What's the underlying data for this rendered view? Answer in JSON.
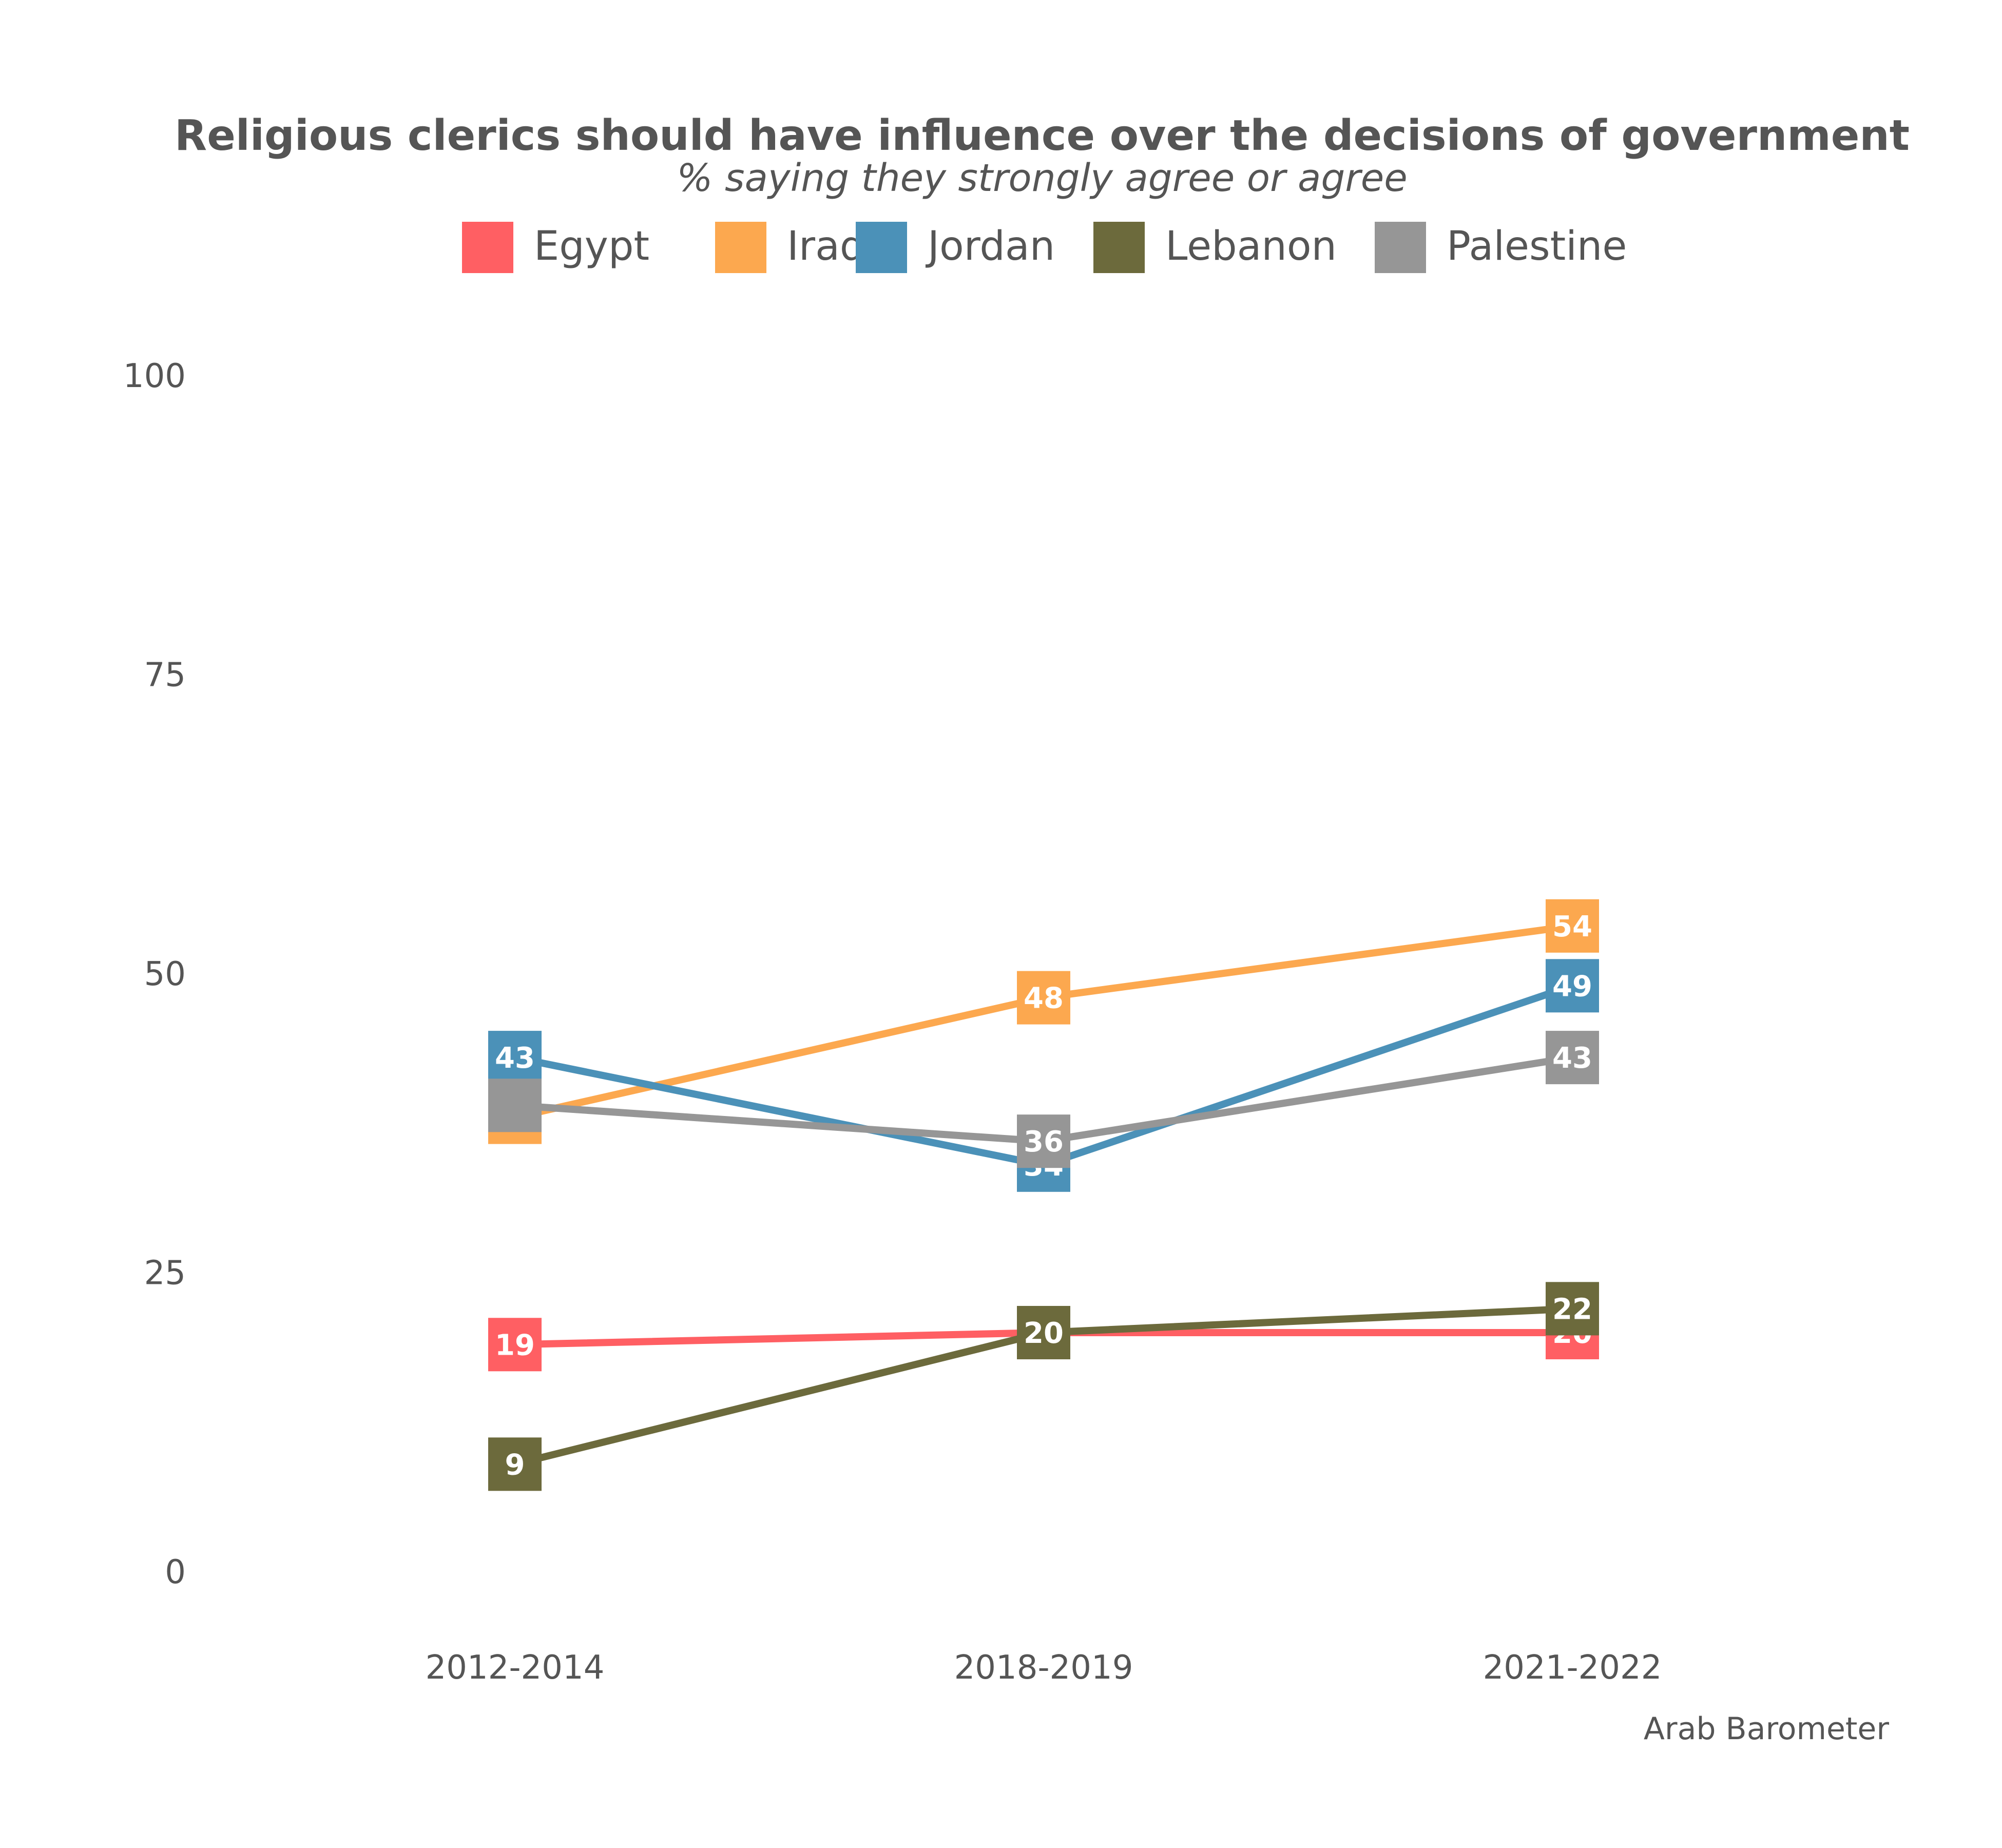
{
  "chart_data": {
    "type": "line",
    "title": "Religious clerics should have influence over the decisions of government",
    "subtitle": "% saying they strongly agree or agree",
    "caption": "Arab Barometer",
    "categories": [
      "2012-2014",
      "2018-2019",
      "2021-2022"
    ],
    "ylim": [
      0,
      100
    ],
    "yticks": [
      0,
      25,
      50,
      75,
      100
    ],
    "legend_position": "top",
    "grid": false,
    "series": [
      {
        "name": "Egypt",
        "color": "#FF5F63",
        "values": [
          19,
          20,
          20
        ]
      },
      {
        "name": "Iraq",
        "color": "#FCA84F",
        "values": [
          38,
          48,
          54
        ]
      },
      {
        "name": "Jordan",
        "color": "#4B91B8",
        "values": [
          43,
          34,
          49
        ]
      },
      {
        "name": "Lebanon",
        "color": "#6C6A3C",
        "values": [
          9,
          20,
          22
        ]
      },
      {
        "name": "Palestine",
        "color": "#969696",
        "values": [
          39,
          36,
          43
        ]
      }
    ],
    "point_labels": {
      "Egypt": [
        "19",
        "",
        "20"
      ],
      "Iraq": [
        "38",
        "48",
        "54"
      ],
      "Jordan": [
        "43",
        "34",
        "49"
      ],
      "Lebanon": [
        "9",
        "20",
        "22"
      ],
      "Palestine": [
        "",
        "36",
        "43"
      ]
    }
  }
}
